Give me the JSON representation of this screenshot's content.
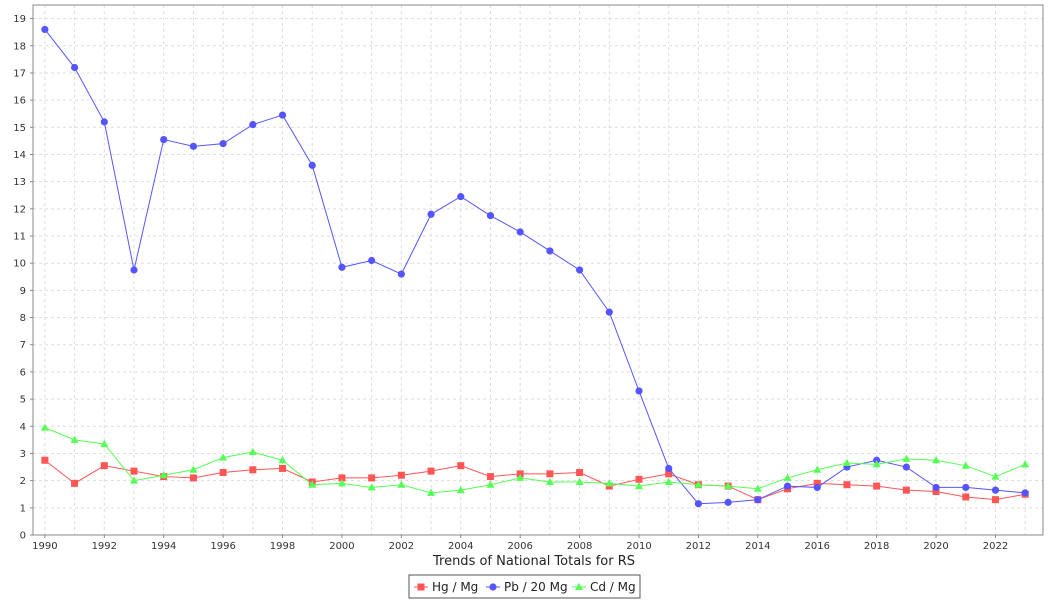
{
  "chart_data": {
    "type": "line",
    "xlabel": "Trends of National Totals for RS",
    "ylabel": "",
    "ylim": [
      0,
      19.5
    ],
    "xlim": [
      1989.6,
      2023.6
    ],
    "y_ticks": [
      "0",
      "1",
      "2",
      "3",
      "4",
      "5",
      "6",
      "7",
      "8",
      "9",
      "10",
      "11",
      "12",
      "13",
      "14",
      "15",
      "16",
      "17",
      "18",
      "19"
    ],
    "x_ticks": [
      "1990",
      "1992",
      "1994",
      "1996",
      "1998",
      "2000",
      "2002",
      "2004",
      "2006",
      "2008",
      "2010",
      "2012",
      "2014",
      "2016",
      "2018",
      "2020",
      "2022"
    ],
    "grid": true,
    "legend_position": "bottom-center",
    "x": [
      1990,
      1991,
      1992,
      1993,
      1994,
      1995,
      1996,
      1997,
      1998,
      1999,
      2000,
      2001,
      2002,
      2003,
      2004,
      2005,
      2006,
      2007,
      2008,
      2009,
      2010,
      2011,
      2012,
      2013,
      2014,
      2015,
      2016,
      2017,
      2018,
      2019,
      2020,
      2021,
      2022,
      2023
    ],
    "series": [
      {
        "name": "Hg / Mg",
        "color": "#ff5555",
        "marker": "square",
        "values": [
          2.75,
          1.9,
          2.55,
          2.35,
          2.15,
          2.1,
          2.3,
          2.4,
          2.45,
          1.95,
          2.1,
          2.1,
          2.2,
          2.35,
          2.55,
          2.15,
          2.25,
          2.25,
          2.3,
          1.8,
          2.05,
          2.25,
          1.85,
          1.8,
          1.3,
          1.7,
          1.9,
          1.85,
          1.8,
          1.65,
          1.6,
          1.4,
          1.3,
          1.5
        ]
      },
      {
        "name": "Pb / 20 Mg",
        "color": "#5555ff",
        "marker": "circle",
        "values": [
          18.6,
          17.2,
          15.2,
          9.75,
          14.55,
          14.3,
          14.4,
          15.1,
          15.45,
          13.6,
          9.85,
          10.1,
          9.6,
          11.8,
          12.45,
          11.75,
          11.15,
          10.45,
          9.75,
          8.2,
          5.3,
          2.45,
          1.15,
          1.2,
          1.3,
          1.8,
          1.75,
          2.5,
          2.75,
          2.5,
          1.75,
          1.75,
          1.65,
          1.55
        ]
      },
      {
        "name": "Cd / Mg",
        "color": "#55ff55",
        "marker": "triangle",
        "values": [
          3.95,
          3.5,
          3.35,
          2.0,
          2.2,
          2.4,
          2.85,
          3.05,
          2.75,
          1.85,
          1.9,
          1.75,
          1.85,
          1.55,
          1.65,
          1.85,
          2.1,
          1.95,
          1.95,
          1.9,
          1.8,
          1.95,
          1.85,
          1.8,
          1.7,
          2.1,
          2.4,
          2.65,
          2.6,
          2.8,
          2.75,
          2.55,
          2.15,
          2.6
        ]
      }
    ]
  }
}
